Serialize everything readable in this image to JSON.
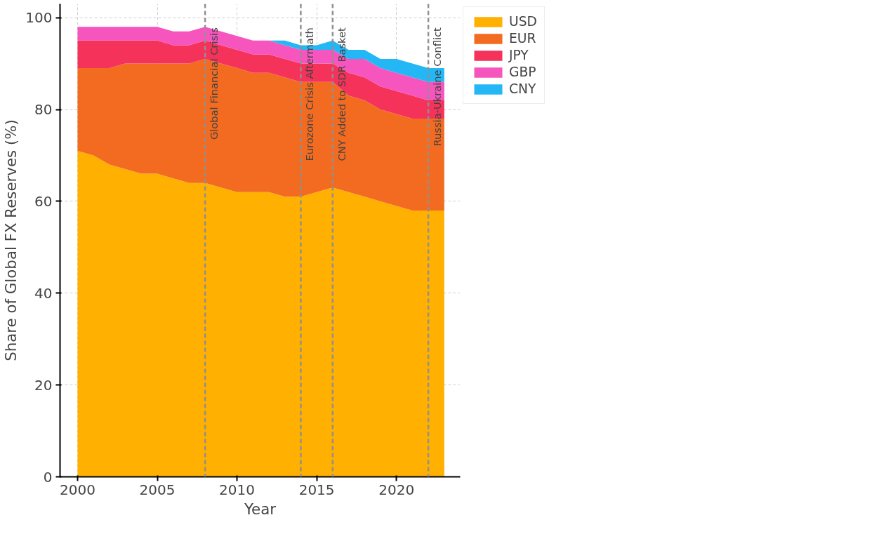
{
  "chart_data": {
    "type": "area",
    "stacked": true,
    "xlabel": "Year",
    "ylabel": "Share of Global FX Reserves (%)",
    "x": [
      2000,
      2001,
      2002,
      2003,
      2004,
      2005,
      2006,
      2007,
      2008,
      2009,
      2010,
      2011,
      2012,
      2013,
      2014,
      2015,
      2016,
      2017,
      2018,
      2019,
      2020,
      2021,
      2022,
      2023
    ],
    "series": [
      {
        "name": "USD",
        "color": "#ffb000",
        "values": [
          71,
          70,
          68,
          67,
          66,
          66,
          65,
          64,
          64,
          63,
          62,
          62,
          62,
          61,
          61,
          62,
          63,
          62,
          61,
          60,
          59,
          58,
          58,
          58
        ]
      },
      {
        "name": "EUR",
        "color": "#f26b21",
        "values": [
          18,
          19,
          21,
          23,
          24,
          24,
          25,
          26,
          27,
          27,
          27,
          26,
          26,
          26,
          25,
          24,
          23,
          21,
          21,
          20,
          20,
          20,
          20,
          20
        ]
      },
      {
        "name": "JPY",
        "color": "#f5325a",
        "values": [
          6,
          6,
          6,
          5,
          5,
          5,
          4,
          4,
          4,
          4,
          4,
          4,
          4,
          4,
          4,
          4,
          4,
          5,
          5,
          5,
          5,
          5,
          4,
          4
        ]
      },
      {
        "name": "GBP",
        "color": "#f655bd",
        "values": [
          3,
          3,
          3,
          3,
          3,
          3,
          3,
          3,
          3,
          3,
          3,
          3,
          3,
          3,
          3,
          3,
          3,
          3,
          4,
          4,
          4,
          4,
          4,
          4
        ]
      },
      {
        "name": "CNY",
        "color": "#24b7f5",
        "values": [
          0,
          0,
          0,
          0,
          0,
          0,
          0,
          0,
          0,
          0,
          0,
          0,
          0,
          1,
          1,
          1,
          2,
          2,
          2,
          2,
          3,
          3,
          3,
          3
        ]
      }
    ],
    "xlim": [
      1998.9,
      2024.0
    ],
    "ylim": [
      0,
      103
    ],
    "xticks": [
      2000,
      2005,
      2010,
      2015,
      2020
    ],
    "yticks": [
      0,
      20,
      40,
      60,
      80,
      100
    ],
    "ref_lines": [
      {
        "axis": "x",
        "value": 2008,
        "label": "Global Financial Crisis",
        "color": "#909090",
        "line_style": "dashed"
      },
      {
        "axis": "x",
        "value": 2014,
        "label": "Eurozone Crisis Aftermath",
        "color": "#909090",
        "line_style": "dashed"
      },
      {
        "axis": "x",
        "value": 2016,
        "label": "CNY Added to SDR Basket",
        "color": "#909090",
        "line_style": "dashed"
      },
      {
        "axis": "x",
        "value": 2022,
        "label": "Russia-Ukraine Conflict",
        "color": "#909090",
        "line_style": "dashed"
      }
    ],
    "grid": true,
    "legend": "right"
  }
}
